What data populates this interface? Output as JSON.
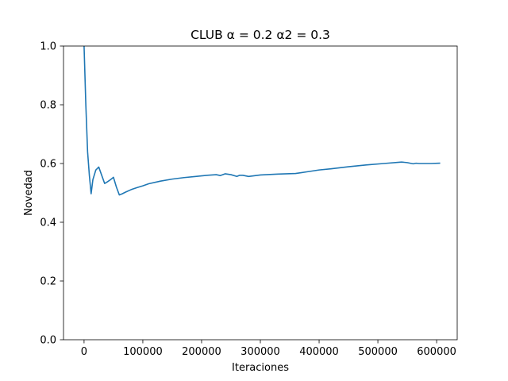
{
  "chart_data": {
    "type": "line",
    "title": "CLUB α =  0.2 α2 = 0.3",
    "xlabel": "Iteraciones",
    "ylabel": "Novedad",
    "xlim": [
      -35000,
      635000
    ],
    "ylim": [
      0.0,
      1.0
    ],
    "xticks": [
      0,
      100000,
      200000,
      300000,
      400000,
      500000,
      600000
    ],
    "xtick_labels": [
      "0",
      "100000",
      "200000",
      "300000",
      "400000",
      "500000",
      "600000"
    ],
    "yticks": [
      0.0,
      0.2,
      0.4,
      0.6,
      0.8,
      1.0
    ],
    "ytick_labels": [
      "0.0",
      "0.2",
      "0.4",
      "0.6",
      "0.8",
      "1.0"
    ],
    "grid": false,
    "series": [
      {
        "color": "#1f77b4",
        "x": [
          0,
          3000,
          6000,
          9000,
          12000,
          15000,
          20000,
          25000,
          30000,
          35000,
          40000,
          45000,
          50000,
          55000,
          60000,
          65000,
          70000,
          80000,
          90000,
          100000,
          110000,
          130000,
          150000,
          170000,
          190000,
          210000,
          225000,
          232000,
          240000,
          250000,
          260000,
          265000,
          270000,
          280000,
          300000,
          330000,
          360000,
          380000,
          400000,
          420000,
          450000,
          480000,
          510000,
          540000,
          550000,
          560000,
          565000,
          570000,
          580000,
          590000,
          605000
        ],
        "y": [
          1.0,
          0.8,
          0.64,
          0.56,
          0.497,
          0.545,
          0.578,
          0.588,
          0.56,
          0.532,
          0.538,
          0.545,
          0.553,
          0.52,
          0.493,
          0.497,
          0.502,
          0.511,
          0.518,
          0.524,
          0.531,
          0.54,
          0.547,
          0.552,
          0.556,
          0.56,
          0.562,
          0.559,
          0.565,
          0.562,
          0.556,
          0.56,
          0.56,
          0.556,
          0.561,
          0.564,
          0.566,
          0.572,
          0.578,
          0.582,
          0.589,
          0.595,
          0.6,
          0.605,
          0.603,
          0.599,
          0.601,
          0.6,
          0.6,
          0.6,
          0.601
        ]
      }
    ]
  }
}
